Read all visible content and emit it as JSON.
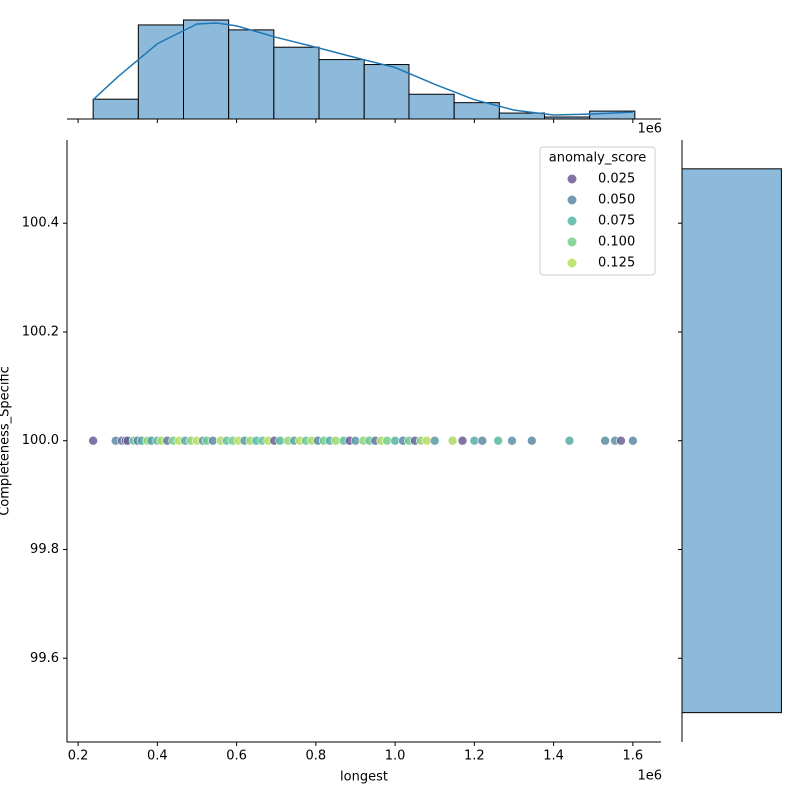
{
  "chart_data": [
    {
      "type": "scatter",
      "x_label": "longest",
      "y_label": "Completeness_Specific",
      "x_offset_label": "1e6",
      "xlim": [
        0.172,
        1.671
      ],
      "ylim": [
        99.446,
        100.553
      ],
      "xticks": [
        0.2,
        0.4,
        0.6,
        0.8,
        {
          "value": 1.0,
          "label": "1.0"
        },
        1.2,
        1.4,
        1.6
      ],
      "yticks": [
        99.6,
        99.8,
        {
          "value": 100.0,
          "label": "100.0"
        },
        100.2,
        100.4
      ],
      "legend_title": "anomaly_score",
      "legend_position": "upper right",
      "legend": [
        {
          "value": 0.025,
          "label": "0.025",
          "color": "#6b5a93"
        },
        {
          "value": 0.05,
          "label": "0.050",
          "color": "#5c8aa4"
        },
        {
          "value": 0.075,
          "label": "0.075",
          "color": "#55b5a6"
        },
        {
          "value": 0.1,
          "label": "0.100",
          "color": "#74cf8c"
        },
        {
          "value": 0.125,
          "label": "0.125",
          "color": "#b7de5d"
        }
      ],
      "x": [
        0.238,
        0.295,
        0.31,
        0.32,
        0.325,
        0.34,
        0.35,
        0.36,
        0.375,
        0.385,
        0.4,
        0.41,
        0.425,
        0.44,
        0.455,
        0.47,
        0.485,
        0.5,
        0.515,
        0.525,
        0.54,
        0.56,
        0.575,
        0.59,
        0.605,
        0.62,
        0.635,
        0.65,
        0.665,
        0.68,
        0.695,
        0.71,
        0.73,
        0.745,
        0.76,
        0.775,
        0.79,
        0.805,
        0.82,
        0.835,
        0.85,
        0.87,
        0.885,
        0.9,
        0.92,
        0.935,
        0.95,
        0.965,
        0.98,
        1.0,
        1.02,
        1.035,
        1.05,
        1.065,
        1.08,
        1.1,
        1.145,
        1.17,
        1.2,
        1.22,
        1.26,
        1.295,
        1.345,
        1.44,
        1.53,
        1.555,
        1.57,
        1.6
      ],
      "y": [
        100,
        100,
        100,
        100,
        100,
        100,
        100,
        100,
        100,
        100,
        100,
        100,
        100,
        100,
        100,
        100,
        100,
        100,
        100,
        100,
        100,
        100,
        100,
        100,
        100,
        100,
        100,
        100,
        100,
        100,
        100,
        100,
        100,
        100,
        100,
        100,
        100,
        100,
        100,
        100,
        100,
        100,
        100,
        100,
        100,
        100,
        100,
        100,
        100,
        100,
        100,
        100,
        100,
        100,
        100,
        100,
        100,
        100,
        100,
        100,
        100,
        100,
        100,
        100,
        100,
        100,
        100,
        100
      ],
      "hue": [
        0.015,
        0.05,
        0.04,
        0.02,
        0.03,
        0.09,
        0.045,
        0.07,
        0.11,
        0.06,
        0.08,
        0.12,
        0.04,
        0.1,
        0.13,
        0.07,
        0.11,
        0.125,
        0.06,
        0.095,
        0.05,
        0.12,
        0.085,
        0.1,
        0.13,
        0.06,
        0.115,
        0.075,
        0.09,
        0.125,
        0.03,
        0.08,
        0.11,
        0.065,
        0.13,
        0.09,
        0.12,
        0.05,
        0.1,
        0.07,
        0.115,
        0.085,
        0.02,
        0.06,
        0.11,
        0.09,
        0.04,
        0.12,
        0.1,
        0.075,
        0.05,
        0.095,
        0.03,
        0.11,
        0.125,
        0.06,
        0.12,
        0.02,
        0.07,
        0.05,
        0.08,
        0.055,
        0.05,
        0.07,
        0.05,
        0.055,
        0.03,
        0.05
      ]
    },
    {
      "type": "histogram",
      "bins": [
        0.238,
        0.352,
        0.466,
        0.58,
        0.694,
        0.808,
        0.922,
        1.035,
        1.149,
        1.263,
        1.377,
        1.491,
        1.605
      ],
      "counts": [
        4,
        19,
        20,
        18,
        14.5,
        12,
        11,
        5,
        3.3,
        1.2,
        0.4,
        1.6
      ],
      "ylim": [
        0,
        20.4
      ],
      "color": "#8dbadb",
      "kde_x": [
        0.238,
        0.3,
        0.4,
        0.5,
        0.55,
        0.6,
        0.7,
        0.8,
        0.9,
        1.0,
        1.1,
        1.2,
        1.3,
        1.4,
        1.5,
        1.6
      ],
      "kde_y": [
        3.9,
        8.5,
        15.2,
        19.2,
        19.4,
        18.8,
        16.5,
        14.5,
        12.4,
        10.4,
        7,
        3.9,
        1.8,
        0.8,
        1,
        1.4
      ],
      "kde_color": "#1f77b4"
    },
    {
      "type": "histogram",
      "bins": [
        99.5,
        100.5
      ],
      "counts": [
        111
      ],
      "xlim": [
        0,
        115
      ],
      "color": "#8dbadb"
    }
  ]
}
